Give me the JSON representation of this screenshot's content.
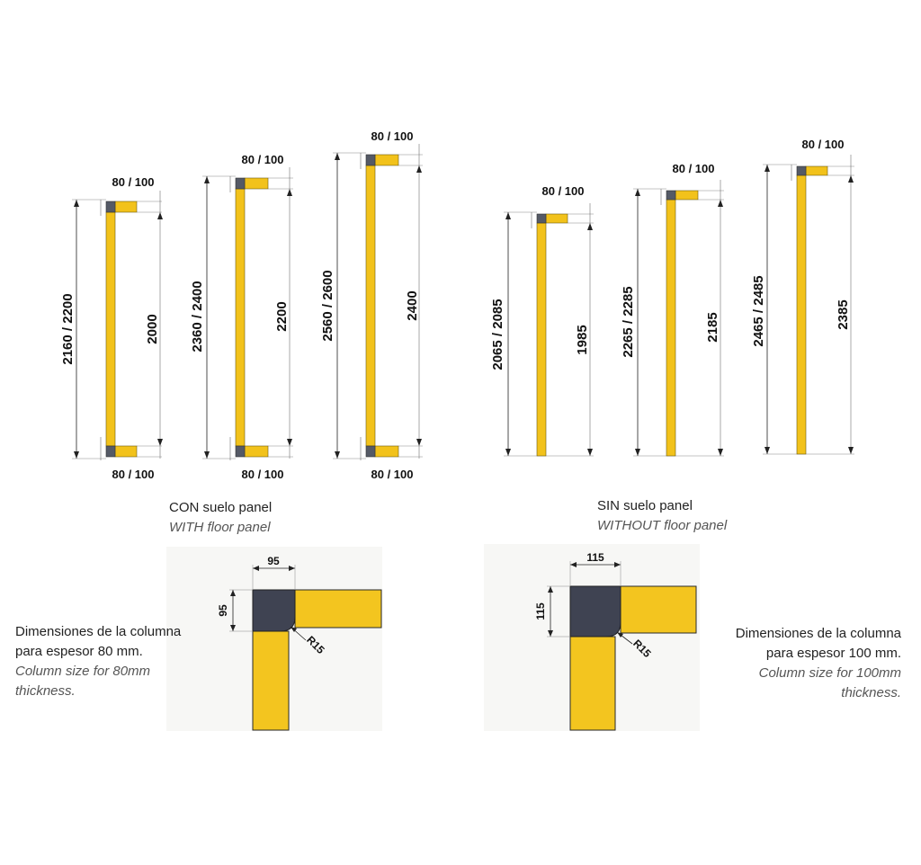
{
  "with_floor": {
    "caption_es": "CON suelo panel",
    "caption_en": "WITH floor panel",
    "columns": [
      {
        "top_label": "80 / 100",
        "bottom_label": "80 / 100",
        "total": "2160 / 2200",
        "inner": "2000"
      },
      {
        "top_label": "80 / 100",
        "bottom_label": "80 / 100",
        "total": "2360 / 2400",
        "inner": "2200"
      },
      {
        "top_label": "80 / 100",
        "bottom_label": "80 / 100",
        "total": "2560 / 2600",
        "inner": "2400"
      }
    ]
  },
  "without_floor": {
    "caption_es": "SIN suelo panel",
    "caption_en": "WITHOUT floor panel",
    "columns": [
      {
        "top_label": "80 / 100",
        "total": "2065 / 2085",
        "inner": "1985"
      },
      {
        "top_label": "80 / 100",
        "total": "2265 / 2285",
        "inner": "2185"
      },
      {
        "top_label": "80 / 100",
        "total": "2465 / 2485",
        "inner": "2385"
      }
    ]
  },
  "detail_80": {
    "width": "95",
    "height": "95",
    "radius": "R15",
    "caption_es_1": "Dimensiones de la columna",
    "caption_es_2": "para espesor 80 mm.",
    "caption_en_1": "Column size for 80mm",
    "caption_en_2": "thickness."
  },
  "detail_100": {
    "width": "115",
    "height": "115",
    "radius": "R15",
    "caption_es_1": "Dimensiones de la columna",
    "caption_es_2": "para espesor 100 mm.",
    "caption_en_1": "Column size for 100mm",
    "caption_en_2": "thickness."
  },
  "colors": {
    "column_yellow": "#f2c21b",
    "corner_gray": "#555a66",
    "detail_navy": "#3f4352"
  }
}
